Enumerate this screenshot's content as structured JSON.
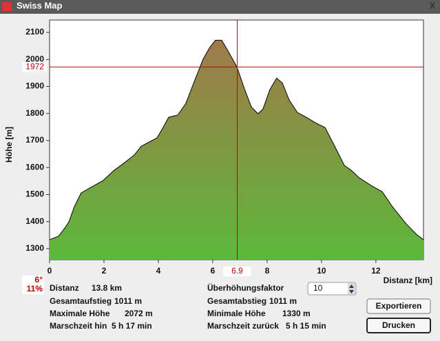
{
  "window": {
    "title": "Swiss Map",
    "close": "X"
  },
  "chart_data": {
    "type": "area",
    "ylabel": "Höhe [m]",
    "xlabel": "Distanz [km]",
    "x": [
      0,
      0.33,
      0.58,
      0.71,
      0.91,
      1.16,
      1.47,
      1.97,
      2.35,
      2.73,
      3.11,
      3.37,
      3.62,
      3.95,
      4.13,
      4.38,
      4.71,
      5.01,
      5.32,
      5.65,
      5.9,
      6.1,
      6.33,
      6.58,
      6.89,
      7.16,
      7.42,
      7.67,
      7.85,
      8.1,
      8.35,
      8.56,
      8.81,
      9.11,
      9.44,
      9.77,
      10.13,
      10.46,
      10.84,
      11.09,
      11.39,
      11.85,
      12.23,
      12.61,
      13.11,
      13.49,
      13.75
    ],
    "series": [
      {
        "values": [
          1333,
          1346,
          1379,
          1399,
          1455,
          1506,
          1524,
          1552,
          1588,
          1616,
          1646,
          1679,
          1692,
          1710,
          1740,
          1786,
          1794,
          1837,
          1918,
          2002,
          2046,
          2071,
          2071,
          2028,
          1972,
          1893,
          1824,
          1799,
          1817,
          1888,
          1931,
          1913,
          1850,
          1804,
          1786,
          1766,
          1748,
          1684,
          1608,
          1590,
          1562,
          1532,
          1511,
          1455,
          1392,
          1353,
          1333
        ],
        "color_top": "#a07a4a",
        "color_bottom": "#5cb83a"
      }
    ],
    "xlim": [
      0,
      13.75
    ],
    "ylim": [
      1259,
      2146
    ],
    "xticks": [
      0,
      2,
      4,
      6,
      8,
      10,
      12
    ],
    "yticks": [
      1300,
      1400,
      1500,
      1600,
      1700,
      1800,
      1900,
      2000,
      2100
    ],
    "crosshair": {
      "x": 6.9,
      "y": 1972,
      "color": "#c00000"
    }
  },
  "slope": {
    "degrees": "6°",
    "percent": "11%"
  },
  "info": {
    "left": [
      [
        "Distanz",
        "13.8 km"
      ],
      [
        "Gesamtaufstieg",
        "1011 m"
      ],
      [
        "Maximale Höhe",
        "2072 m"
      ],
      [
        "Marschzeit hin",
        "5 h 17 min"
      ]
    ],
    "right": [
      [
        "Überhöhungsfaktor",
        "10"
      ],
      [
        "Gesamtabstieg",
        "1011 m"
      ],
      [
        "Minimale Höhe",
        "1330 m"
      ],
      [
        "Marschzeit zurück",
        "5 h 15 min"
      ]
    ]
  },
  "buttons": [
    "Exportieren",
    "Drucken"
  ]
}
